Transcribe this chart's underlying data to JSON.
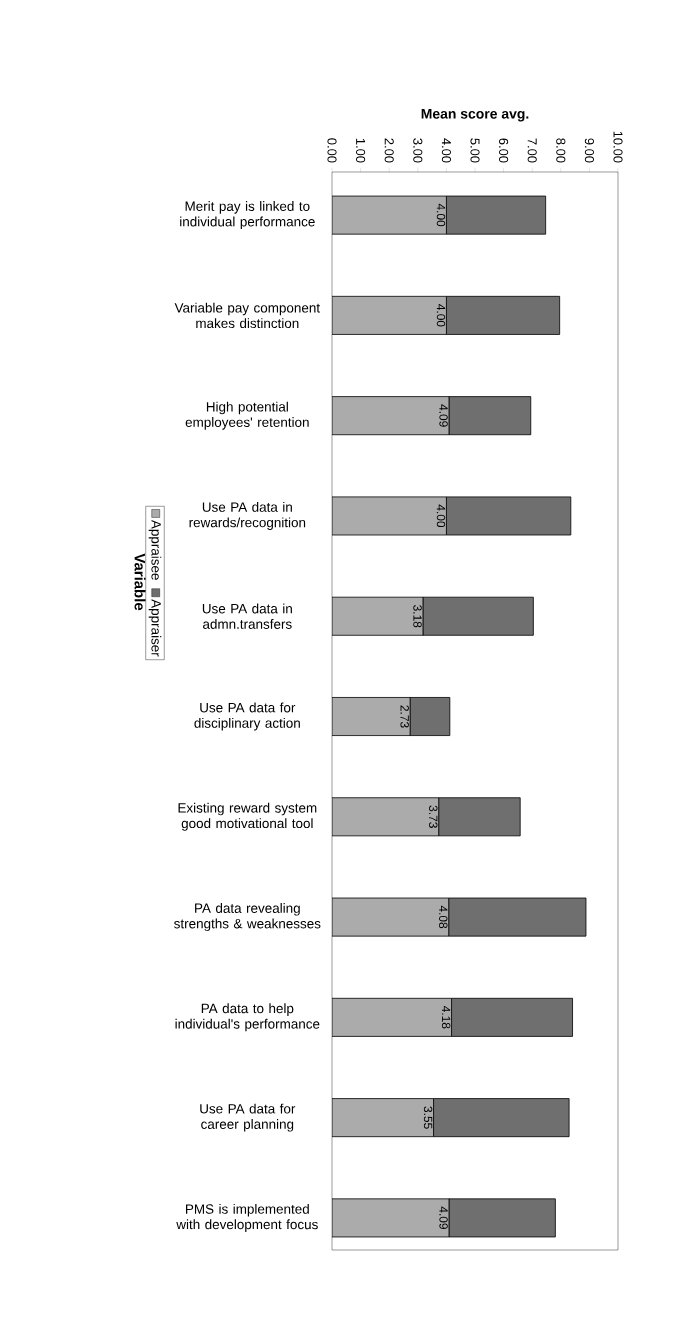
{
  "chart_data": {
    "type": "bar",
    "orientation": "horizontal",
    "stacked": true,
    "xlabel": "Mean score avg.",
    "ylabel": "Variable",
    "legend": "left",
    "categories": [
      "Merit pay is linked to individual performance",
      "Variable pay component makes distinction",
      "High potential employees' retention",
      "Use PA data in rewards/recognition",
      "Use PA data in admn.transfers",
      "Use PA data for disciplinary action",
      "Existing reward system good motivational tool",
      "PA data revealing strengths & weaknesses",
      "PA data to help individual's performance",
      "Use PA data for career planning",
      "PMS is implemented with development focus"
    ],
    "series": [
      {
        "name": "Appraisee",
        "color": "#ababab",
        "values": [
          4.0,
          4.0,
          4.09,
          4.0,
          3.18,
          2.73,
          3.73,
          4.08,
          4.18,
          3.55,
          4.09
        ],
        "value_labels": [
          "4.00",
          "4.00",
          "4.09",
          "4.00",
          "3.18",
          "2.73",
          "3.73",
          "4.08",
          "4.18",
          "3.55",
          "4.09"
        ]
      },
      {
        "name": "Appraiser",
        "color": "#6f6f6f",
        "values": [
          3.47,
          3.96,
          2.86,
          4.35,
          3.86,
          1.39,
          2.85,
          4.8,
          4.23,
          4.74,
          3.72
        ]
      }
    ],
    "xlim": [
      0,
      10
    ],
    "xticks": [
      {
        "value": 0,
        "label": "0.00"
      },
      {
        "value": 1,
        "label": "1.00"
      },
      {
        "value": 2,
        "label": "2.00"
      },
      {
        "value": 3,
        "label": "3.00"
      },
      {
        "value": 4,
        "label": "4.00"
      },
      {
        "value": 5,
        "label": "5.00"
      },
      {
        "value": 6,
        "label": "6.00"
      },
      {
        "value": 7,
        "label": "7.00"
      },
      {
        "value": 8,
        "label": "8.00"
      },
      {
        "value": 9,
        "label": "9.00"
      },
      {
        "value": 10,
        "label": "10.00"
      }
    ]
  }
}
